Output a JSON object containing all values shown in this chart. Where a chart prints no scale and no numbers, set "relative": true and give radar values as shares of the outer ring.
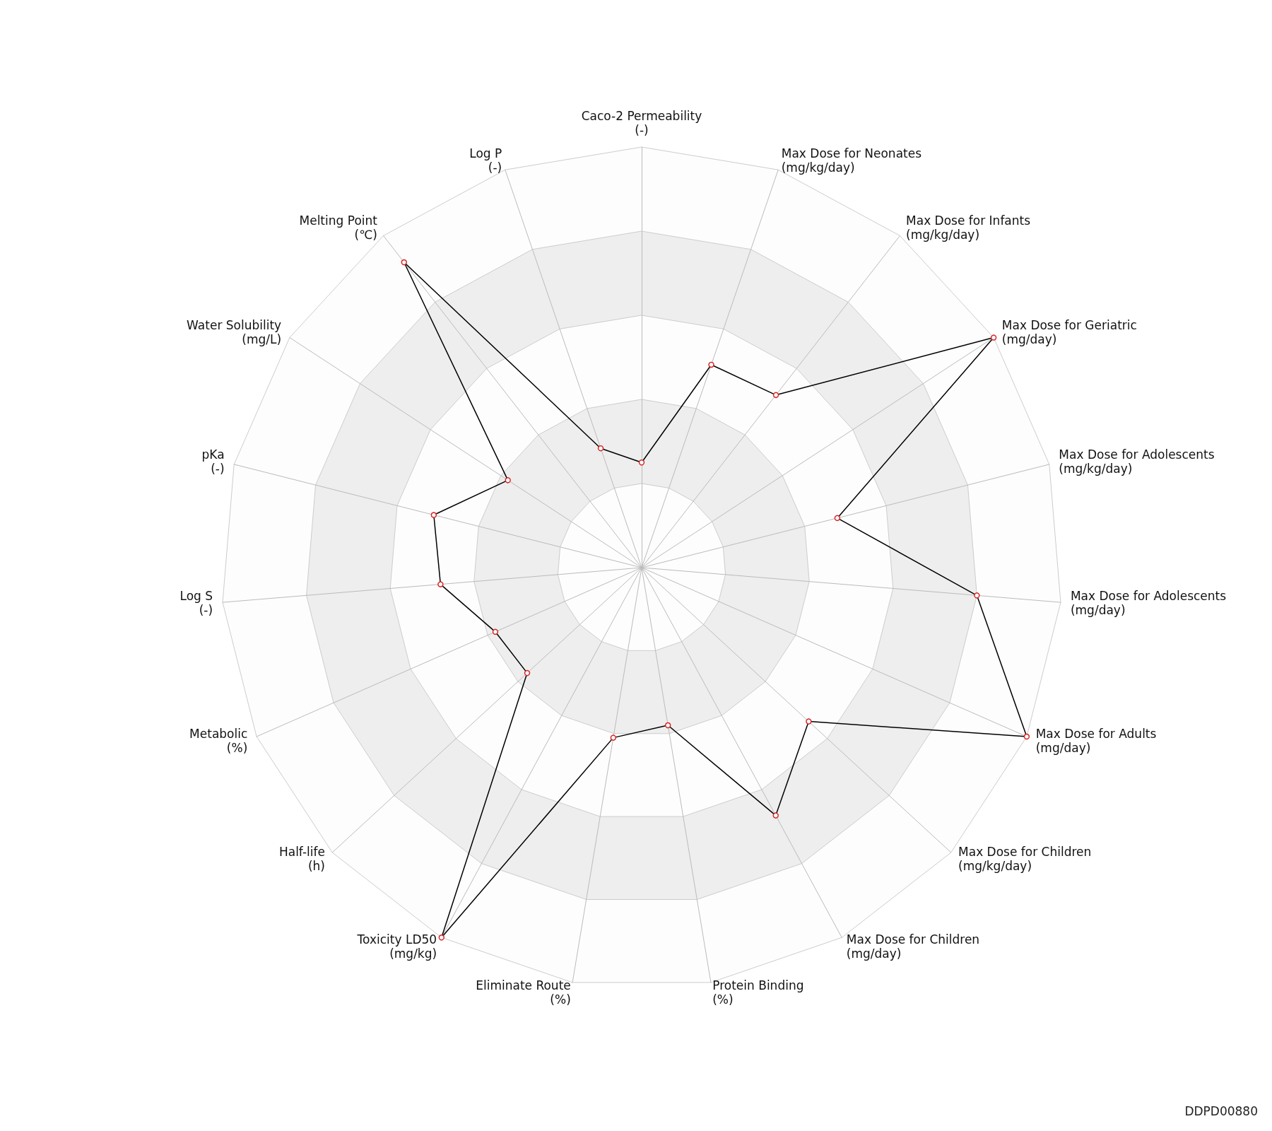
{
  "chart_data": {
    "type": "radar",
    "relative": true,
    "marker": "circle",
    "line_style": "solid",
    "categories": [
      "Caco-2 Permeability\n(-)",
      "Max Dose for Neonates\n(mg/kg/day)",
      "Max Dose for Infants\n(mg/kg/day)",
      "Max Dose for Geriatric\n(mg/day)",
      "Max Dose for Adolescents\n(mg/kg/day)",
      "Max Dose for Adolescents\n(mg/day)",
      "Max Dose for Adults\n(mg/day)",
      "Max Dose for Children\n(mg/kg/day)",
      "Max Dose for Children\n(mg/day)",
      "Protein Binding\n(%)",
      "Eliminate Route\n(%)",
      "Toxicity LD50\n(mg/kg)",
      "Half-life\n(h)",
      "Metabolic\n(%)",
      "Log S\n(-)",
      "pKa\n(-)",
      "Water Solubility\n(mg/L)",
      "Melting Point\n(℃)",
      "Log P\n(-)"
    ],
    "series": [
      {
        "color": "#000000",
        "values": [
          0.25,
          0.51,
          0.52,
          1.0,
          0.48,
          0.8,
          1.0,
          0.54,
          0.67,
          0.38,
          0.41,
          1.0,
          0.37,
          0.38,
          0.48,
          0.51,
          0.38,
          0.92,
          0.3
        ]
      }
    ],
    "annotations": [
      "DDPD00880"
    ]
  }
}
